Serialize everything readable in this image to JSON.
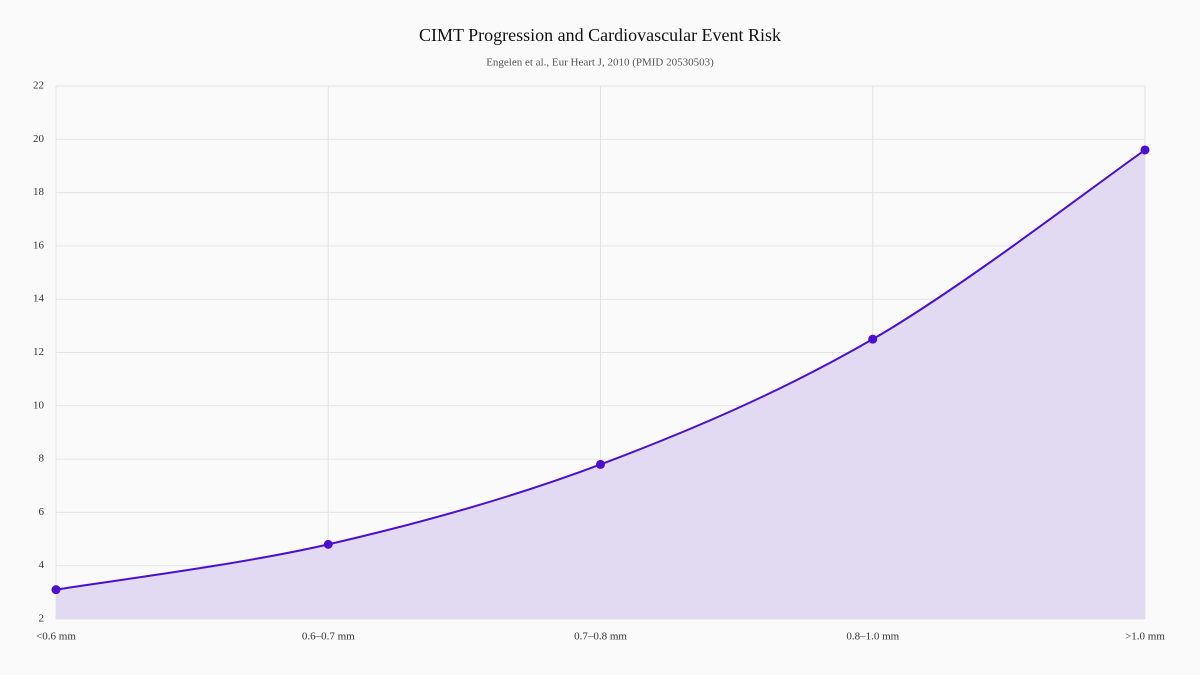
{
  "chart_data": {
    "type": "line",
    "title": "CIMT Progression and Cardiovascular Event Risk",
    "subtitle": "Engelen et al., Eur Heart J, 2010 (PMID 20530503)",
    "categories": [
      "<0.6 mm",
      "0.6–0.7 mm",
      "0.7–0.8 mm",
      "0.8–1.0 mm",
      ">1.0 mm"
    ],
    "values": [
      3.1,
      4.8,
      7.8,
      12.5,
      19.6
    ],
    "color": "#4a0fcf",
    "area_color": "#e2daf3",
    "ylim": [
      2,
      22
    ],
    "yticks": [
      2,
      4,
      6,
      8,
      10,
      12,
      14,
      16,
      18,
      20,
      22
    ],
    "grid": true,
    "fill": true
  }
}
